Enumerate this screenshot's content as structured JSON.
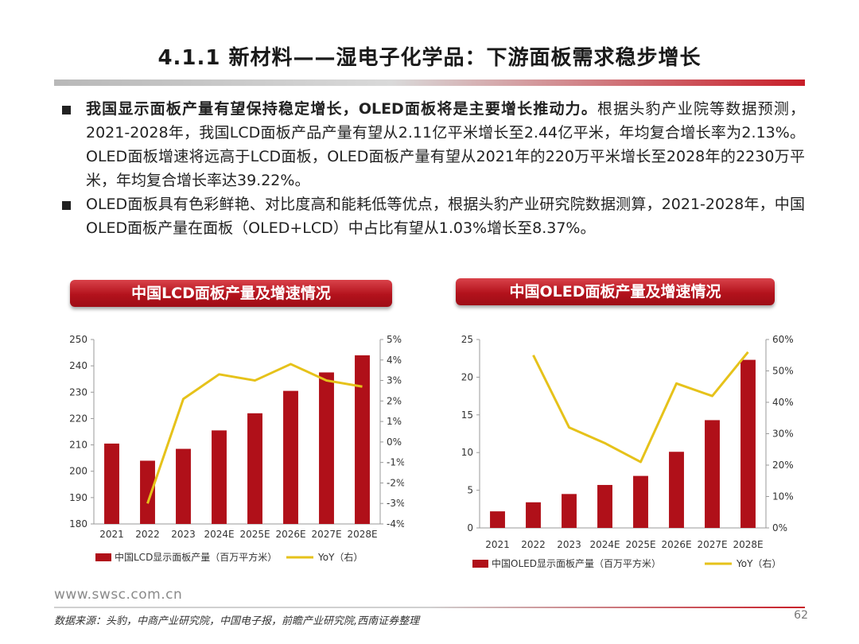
{
  "page": {
    "title": "4.1.1 新材料——湿电子化学品：下游面板需求稳步增长",
    "page_number": "62",
    "footer_url": "www.swsc.com.cn",
    "source": "数据来源：头豹，中商产业研究院，中国电子报，前瞻产业研究院,西南证券整理"
  },
  "bullets": [
    {
      "lead": "我国显示面板产量有望保持稳定增长，OLED面板将是主要增长推动力。",
      "text": "根据头豹产业院等数据预测，2021-2028年，我国LCD面板产品产量有望从2.11亿平米增长至2.44亿平米，年均复合增长率为2.13%。OLED面板增速将远高于LCD面板，OLED面板产量有望从2021年的220万平米增长至2028年的2230万平米，年均复合增长率达39.22%。"
    },
    {
      "lead": "",
      "text": "OLED面板具有色彩鲜艳、对比度高和能耗低等优点，根据头豹产业研究院数据测算，2021-2028年，中国OLED面板产量在面板（OLED+LCD）中占比有望从1.03%增长至8.37%。"
    }
  ],
  "colors": {
    "bar": "#b01019",
    "line": "#e6c21a",
    "accent": "#c81e28"
  },
  "chart_data": [
    {
      "type": "bar",
      "title": "中国LCD面板产量及增速情况",
      "categories": [
        "2021",
        "2022",
        "2023",
        "2024E",
        "2025E",
        "2026E",
        "2027E",
        "2028E"
      ],
      "series": [
        {
          "name": "中国LCD显示面板产量（百万平方米）",
          "type": "bar",
          "axis": "left",
          "values": [
            210.5,
            204,
            208.5,
            215.5,
            222,
            230.5,
            237.5,
            244
          ]
        },
        {
          "name": "YoY（右）",
          "type": "line",
          "axis": "right",
          "values": [
            null,
            -3.0,
            2.1,
            3.3,
            3.0,
            3.8,
            3.0,
            2.7
          ]
        }
      ],
      "left_axis": {
        "min": 180,
        "max": 250,
        "ticks": [
          "180",
          "190",
          "200",
          "210",
          "220",
          "230",
          "240",
          "250"
        ]
      },
      "right_axis": {
        "min": -4,
        "max": 5,
        "ticks": [
          "-4%",
          "-3%",
          "-2%",
          "-1%",
          "0%",
          "1%",
          "2%",
          "3%",
          "4%",
          "5%"
        ]
      }
    },
    {
      "type": "bar",
      "title": "中国OLED面板产量及增速情况",
      "categories": [
        "2021",
        "2022",
        "2023",
        "2024E",
        "2025E",
        "2026E",
        "2027E",
        "2028E"
      ],
      "series": [
        {
          "name": "中国OLED显示面板产量（百万平方米）",
          "type": "bar",
          "axis": "left",
          "values": [
            2.2,
            3.4,
            4.5,
            5.7,
            6.9,
            10.1,
            14.3,
            22.3
          ]
        },
        {
          "name": "YoY（右）",
          "type": "line",
          "axis": "right",
          "values": [
            null,
            55,
            32,
            27,
            21,
            46,
            42,
            56
          ]
        }
      ],
      "left_axis": {
        "min": 0,
        "max": 25,
        "ticks": [
          "0",
          "5",
          "10",
          "15",
          "20",
          "25"
        ]
      },
      "right_axis": {
        "min": 0,
        "max": 60,
        "ticks": [
          "0%",
          "10%",
          "20%",
          "30%",
          "40%",
          "50%",
          "60%"
        ]
      }
    }
  ]
}
